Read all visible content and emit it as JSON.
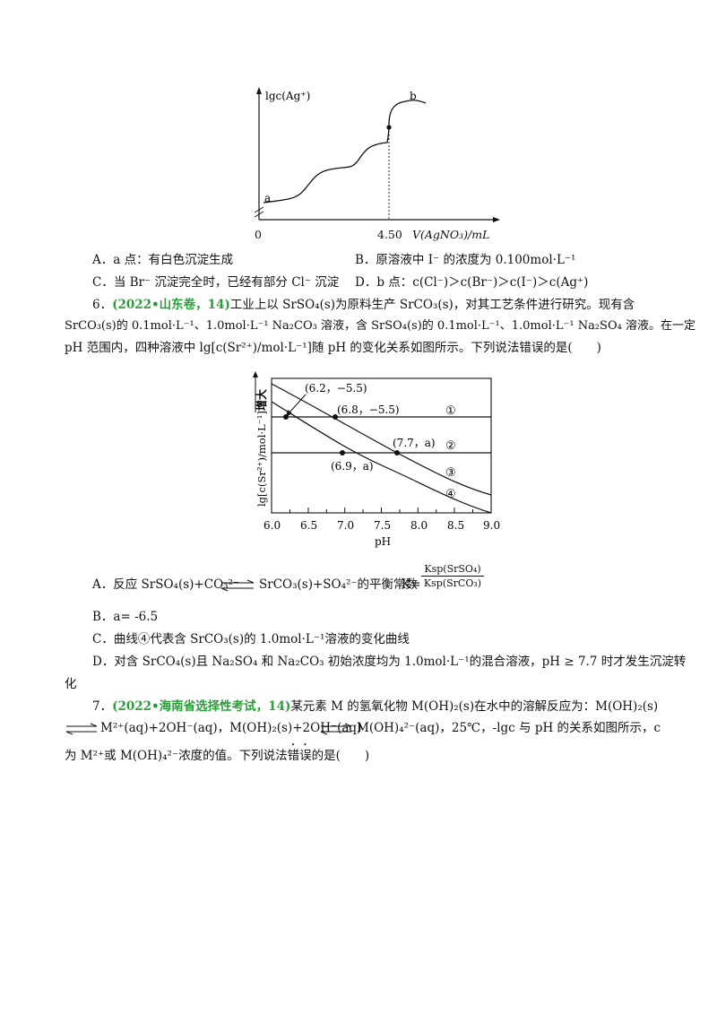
{
  "fig1": {
    "ylabel": "lgc(Ag⁺)",
    "xlabel": "V(AgNO₃)/mL",
    "origin": "0",
    "xtick": "4.50",
    "point_a": "a",
    "point_b": "b"
  },
  "q5_options": {
    "A": "A．a 点：有白色沉淀生成",
    "B": "B．原溶液中 I⁻ 的浓度为 0.100mol·L⁻¹",
    "C": "C．当 Br⁻ 沉淀完全时，已经有部分 Cl⁻ 沉淀",
    "D": "D．b 点：c(Cl⁻)＞c(Br⁻)＞c(I⁻)＞c(Ag⁺)"
  },
  "q6": {
    "number": "6．",
    "source": "(2022•山东卷，14)",
    "line1": "工业上以 SrSO₄(s)为原料生产 SrCO₃(s)，对其工艺条件进行研究。现有含",
    "line2": "SrCO₃(s)的 0.1mol·L⁻¹、1.0mol·L⁻¹ Na₂CO₃ 溶液，含 SrSO₄(s)的 0.1mol·L⁻¹、1.0mol·L⁻¹ Na₂SO₄ 溶液。在一定",
    "line3": "pH 范围内，四种溶液中 lg[c(Sr²⁺)/mol·L⁻¹]随 pH 的变化关系如图所示。下列说法错误的是(　　)",
    "options": {
      "A_pre": "A．反应 SrSO₄(s)+CO₃²⁻",
      "A_post": "SrCO₃(s)+SO₄²⁻的平衡常数",
      "A_k": "K=",
      "A_num": "Ksp(SrSO₄)",
      "A_den": "Ksp(SrCO₃)",
      "B": "B．a= -6.5",
      "C": "C．曲线④代表含 SrCO₃(s)的 1.0mol·L⁻¹溶液的变化曲线",
      "D1": "D．对含 SrCO₄(s)且 Na₂SO₄ 和 Na₂CO₃ 初始浓度均为 1.0mol·L⁻¹的混合溶液，pH ≥ 7.7 时才发生沉淀转",
      "D2": "化"
    }
  },
  "fig2": {
    "ylabel": "lg[c(Sr²⁺)/mol·L⁻¹]",
    "yarrow_label": "增大",
    "xlabel": "pH",
    "xticks": [
      "6.0",
      "6.5",
      "7.0",
      "7.5",
      "8.0",
      "8.5",
      "9.0"
    ],
    "annotations": [
      "(6.2，−5.5)",
      "(6.8，−5.5)",
      "(7.7，a)",
      "(6.9，a)"
    ],
    "curve_labels": [
      "①",
      "②",
      "③",
      "④"
    ]
  },
  "q7": {
    "number": "7．",
    "source": "(2022•海南省选择性考试，14)",
    "line1": "某元素 M 的氢氧化物 M(OH)₂(s)在水中的溶解反应为：M(OH)₂(s)",
    "line2a": "M²⁺(aq)+2OH⁻(aq)，M(OH)₂(s)+2OH⁻(aq)",
    "line2b": "M(OH)₄²⁻(aq)，25℃，-lgc 与 pH 的关系如图所示，c",
    "line3a": "为 M²⁺或 M(OH)₄²⁻浓度的值。下列说法",
    "line3b": "错误",
    "line3c": "的是(　　)"
  }
}
